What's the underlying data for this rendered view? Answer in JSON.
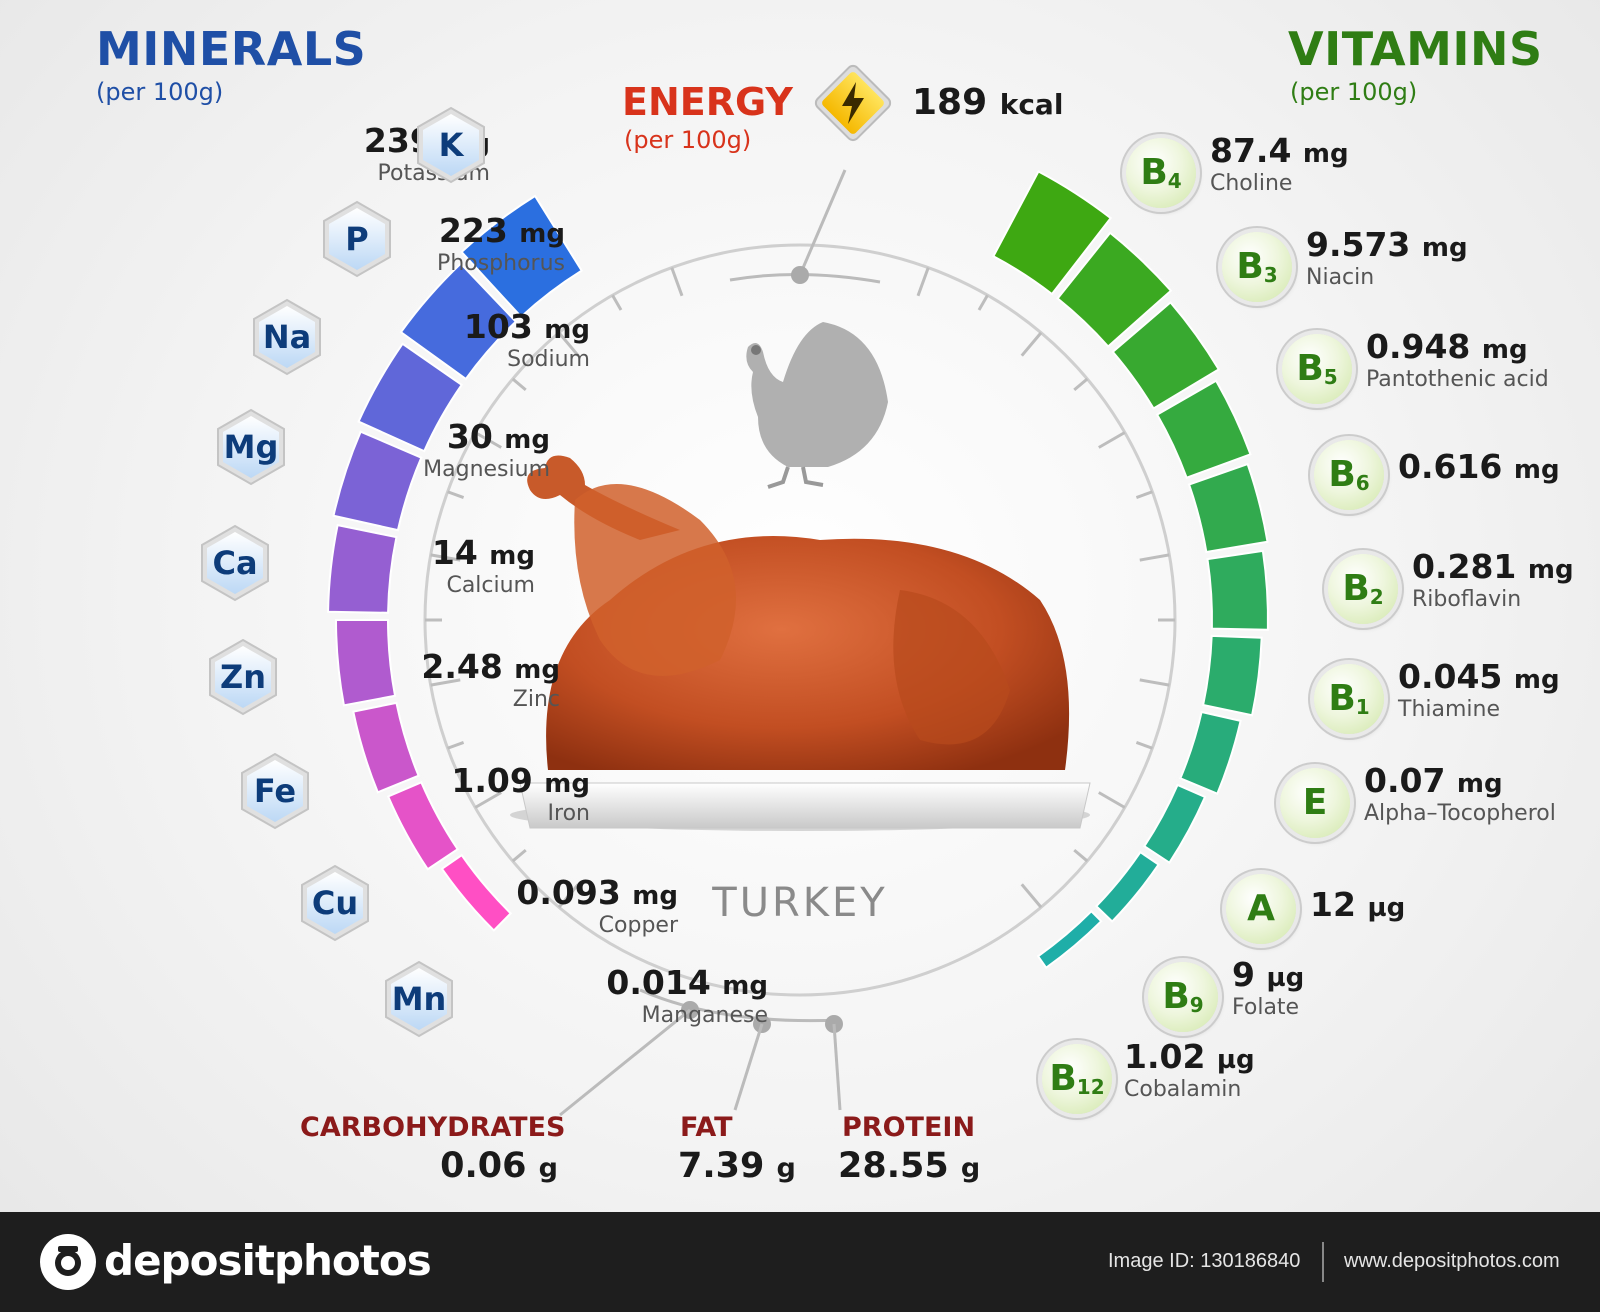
{
  "minerals_header": {
    "title": "MINERALS",
    "subtitle": "(per 100g)"
  },
  "vitamins_header": {
    "title": "VITAMINS",
    "subtitle": "(per 100g)"
  },
  "energy": {
    "label": "ENERGY",
    "subtitle": "(per 100g)",
    "value": "189",
    "unit": "kcal",
    "icon": "lightning-icon"
  },
  "center_label": "TURKEY",
  "minerals": [
    {
      "symbol": "K",
      "value": "239",
      "unit": "mg",
      "name": "Potassium"
    },
    {
      "symbol": "P",
      "value": "223",
      "unit": "mg",
      "name": "Phosphorus"
    },
    {
      "symbol": "Na",
      "value": "103",
      "unit": "mg",
      "name": "Sodium"
    },
    {
      "symbol": "Mg",
      "value": "30",
      "unit": "mg",
      "name": "Magnesium"
    },
    {
      "symbol": "Ca",
      "value": "14",
      "unit": "mg",
      "name": "Calcium"
    },
    {
      "symbol": "Zn",
      "value": "2.48",
      "unit": "mg",
      "name": "Zinc"
    },
    {
      "symbol": "Fe",
      "value": "1.09",
      "unit": "mg",
      "name": "Iron"
    },
    {
      "symbol": "Cu",
      "value": "0.093",
      "unit": "mg",
      "name": "Copper"
    },
    {
      "symbol": "Mn",
      "value": "0.014",
      "unit": "mg",
      "name": "Manganese"
    }
  ],
  "vitamins": [
    {
      "letter": "B",
      "index": "4",
      "value": "87.4",
      "unit": "mg",
      "name": "Choline"
    },
    {
      "letter": "B",
      "index": "3",
      "value": "9.573",
      "unit": "mg",
      "name": "Niacin"
    },
    {
      "letter": "B",
      "index": "5",
      "value": "0.948",
      "unit": "mg",
      "name": "Pantothenic acid"
    },
    {
      "letter": "B",
      "index": "6",
      "value": "0.616",
      "unit": "mg",
      "name": ""
    },
    {
      "letter": "B",
      "index": "2",
      "value": "0.281",
      "unit": "mg",
      "name": "Riboflavin"
    },
    {
      "letter": "B",
      "index": "1",
      "value": "0.045",
      "unit": "mg",
      "name": "Thiamine"
    },
    {
      "letter": "E",
      "index": "",
      "value": "0.07",
      "unit": "mg",
      "name": "Alpha–Tocopherol"
    },
    {
      "letter": "A",
      "index": "",
      "value": "12",
      "unit": "µg",
      "name": ""
    },
    {
      "letter": "B",
      "index": "9",
      "value": "9",
      "unit": "µg",
      "name": "Folate"
    },
    {
      "letter": "B",
      "index": "12",
      "value": "1.02",
      "unit": "µg",
      "name": "Cobalamin"
    }
  ],
  "macros": [
    {
      "label": "CARBOHYDRATES",
      "value": "0.06",
      "unit": "g"
    },
    {
      "label": "FAT",
      "value": "7.39",
      "unit": "g"
    },
    {
      "label": "PROTEIN",
      "value": "28.55",
      "unit": "g"
    }
  ],
  "colors": {
    "minerals_title": "#1f4fa6",
    "vitamins_title": "#2f7d14",
    "energy_label": "#d8331b",
    "macro_label": "#8b1a1a",
    "mineral_arc_start": "#2b6fe0",
    "mineral_arc_end": "#ff4fc4",
    "vitamin_arc_start": "#3ea812",
    "vitamin_arc_end": "#1faea8"
  },
  "footer": {
    "brand": "depositphotos",
    "image_id": "Image ID: 130186840",
    "website": "www.depositphotos.com"
  }
}
